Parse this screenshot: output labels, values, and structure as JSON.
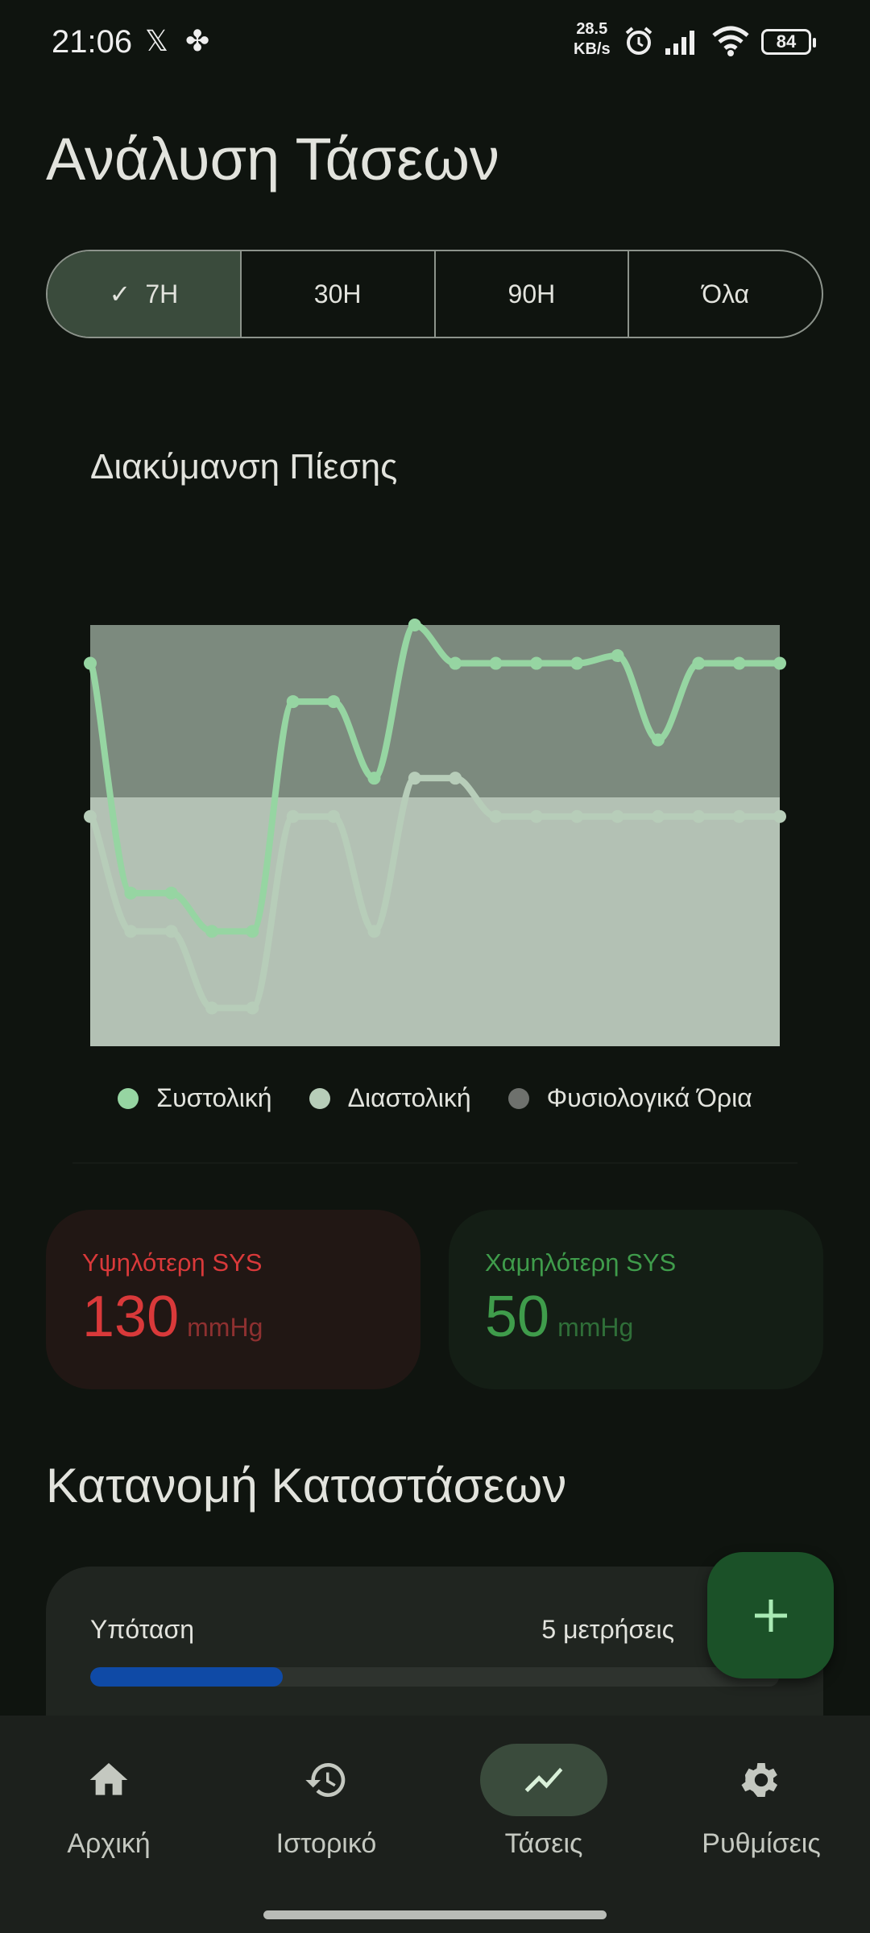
{
  "status_bar": {
    "time": "21:06",
    "net_speed_value": "28.5",
    "net_speed_unit": "KB/s",
    "battery": "84",
    "icons": [
      "x-icon",
      "pinwheel-icon",
      "alarm-icon",
      "signal-icon",
      "wifi-icon",
      "battery-icon"
    ]
  },
  "header": {
    "title": "Ανάλυση Τάσεων"
  },
  "range_tabs": [
    {
      "label": "7Η",
      "selected": true
    },
    {
      "label": "30Η",
      "selected": false
    },
    {
      "label": "90Η",
      "selected": false
    },
    {
      "label": "Όλα",
      "selected": false
    }
  ],
  "chart_card": {
    "title": "Διακύμανση Πίεσης"
  },
  "chart_data": {
    "type": "line",
    "title": "Διακύμανση Πίεσης",
    "xlabel": "",
    "ylabel": "",
    "ylim": [
      20,
      130
    ],
    "grid": false,
    "legend_placement": "bottom",
    "normal_range_band": {
      "name": "Φυσιολογικά Όρια",
      "upper_region": [
        85,
        130
      ],
      "lower_region": [
        20,
        85
      ],
      "upper_color": "#7c8a7e",
      "lower_color": "#b3c1b4"
    },
    "series": [
      {
        "name": "Συστολική",
        "color": "#96d5a2",
        "values": [
          120,
          60,
          60,
          50,
          50,
          110,
          110,
          90,
          130,
          120,
          120,
          120,
          120,
          122,
          100,
          120,
          120,
          120
        ]
      },
      {
        "name": "Διαστολική",
        "color": "#b7cdb9",
        "values": [
          80,
          50,
          50,
          30,
          30,
          80,
          80,
          50,
          90,
          90,
          80,
          80,
          80,
          80,
          80,
          80,
          80,
          80
        ]
      }
    ],
    "legend": [
      {
        "label": "Συστολική",
        "color": "#96d5a2"
      },
      {
        "label": "Διαστολική",
        "color": "#b7cdb9"
      },
      {
        "label": "Φυσιολογικά Όρια",
        "color": "#6e716d"
      }
    ]
  },
  "stats": {
    "highest": {
      "label": "Υψηλότερη SYS",
      "value": "130",
      "unit": "mmHg",
      "color": "#d9393a",
      "bg": "#211714"
    },
    "lowest": {
      "label": "Χαμηλότερη SYS",
      "value": "50",
      "unit": "mmHg",
      "color": "#3f9c4b",
      "bg": "#141e15"
    }
  },
  "distribution": {
    "title": "Κατανομή Καταστάσεων",
    "rows": [
      {
        "label": "Υπόταση",
        "count": "5 μετρήσεις",
        "fraction": 0.28,
        "color": "#0f4aa6"
      }
    ]
  },
  "fab": {
    "icon": "plus-icon"
  },
  "nav": [
    {
      "label": "Αρχική",
      "icon": "home-icon"
    },
    {
      "label": "Ιστορικό",
      "icon": "history-icon"
    },
    {
      "label": "Τάσεις",
      "icon": "trending-icon",
      "active": true
    },
    {
      "label": "Ρυθμίσεις",
      "icon": "settings-icon"
    }
  ]
}
